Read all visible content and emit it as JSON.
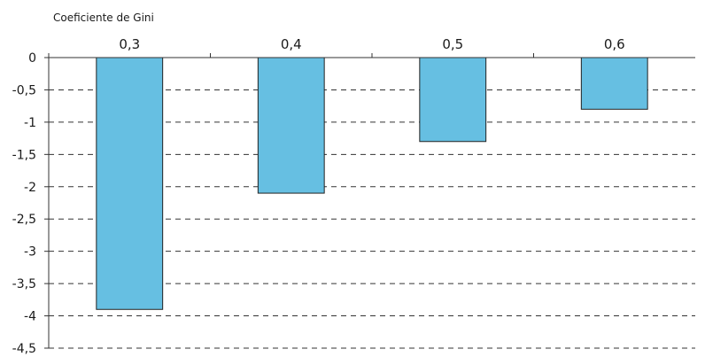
{
  "chart_data": {
    "type": "bar",
    "xlabel": "Coeficiente de Gini",
    "x_axis_position": "top",
    "categories": [
      "0,3",
      "0,4",
      "0,5",
      "0,6"
    ],
    "values": [
      -3.9,
      -2.1,
      -1.3,
      -0.8
    ],
    "ylim": [
      -4.5,
      0
    ],
    "yticks": [
      "0",
      "-0,5",
      "-1",
      "-1,5",
      "-2",
      "-2,5",
      "-3",
      "-3,5",
      "-4",
      "-4,5"
    ],
    "ytick_values": [
      0,
      -0.5,
      -1,
      -1.5,
      -2,
      -2.5,
      -3,
      -3.5,
      -4,
      -4.5
    ],
    "grid": true,
    "grid_style": "dashed",
    "bar_color": "#66bfe2",
    "bar_edge_color": "#222222"
  }
}
